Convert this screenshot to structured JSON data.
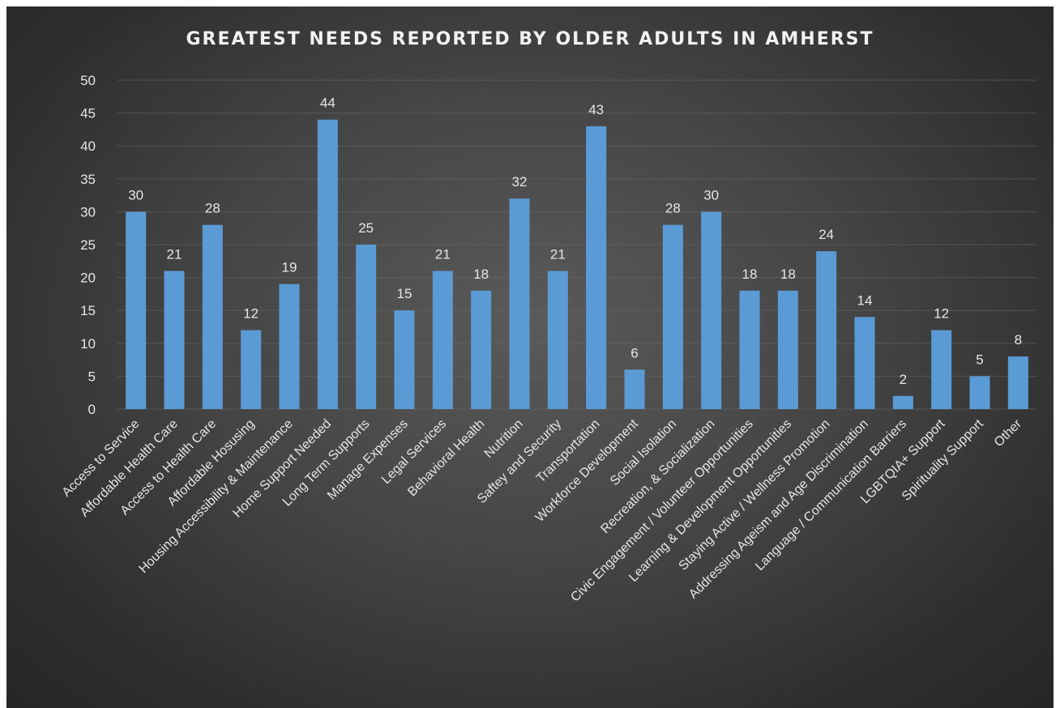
{
  "chart_data": {
    "type": "bar",
    "title": "GREATEST NEEDS REPORTED BY OLDER ADULTS IN AMHERST",
    "xlabel": "",
    "ylabel": "",
    "ylim": [
      0,
      50
    ],
    "yticks": [
      0,
      5,
      10,
      15,
      20,
      25,
      30,
      35,
      40,
      45,
      50
    ],
    "grid": true,
    "data_labels": true,
    "bar_color": "#5b9bd5",
    "categories": [
      "Access to Service",
      "Affordable Health Care",
      "Access to Health Care",
      "Affordable Hosusing",
      "Housing Accessibility & Maintenance",
      "Home Support Needed",
      "Long Term Supports",
      "Manage Expenses",
      "Legal Services",
      "Behavioral Health",
      "Nutrition",
      "Saftey and Security",
      "Transportation",
      "Workforce Development",
      "Social Isolation",
      "Recreation, & Socialization",
      "Civic Engagement / Volunteer Opportunities",
      "Learning & Development Opportunities",
      "Staying Active / Wellness Promotion",
      "Addressing Ageism and Age Discrimination",
      "Language / Communication Barriers",
      "LGBTQIA+ Support",
      "Spirituality Support",
      "Other"
    ],
    "values": [
      30,
      21,
      28,
      12,
      19,
      44,
      25,
      15,
      21,
      18,
      32,
      21,
      43,
      6,
      28,
      30,
      18,
      18,
      24,
      14,
      2,
      12,
      5,
      8
    ]
  }
}
